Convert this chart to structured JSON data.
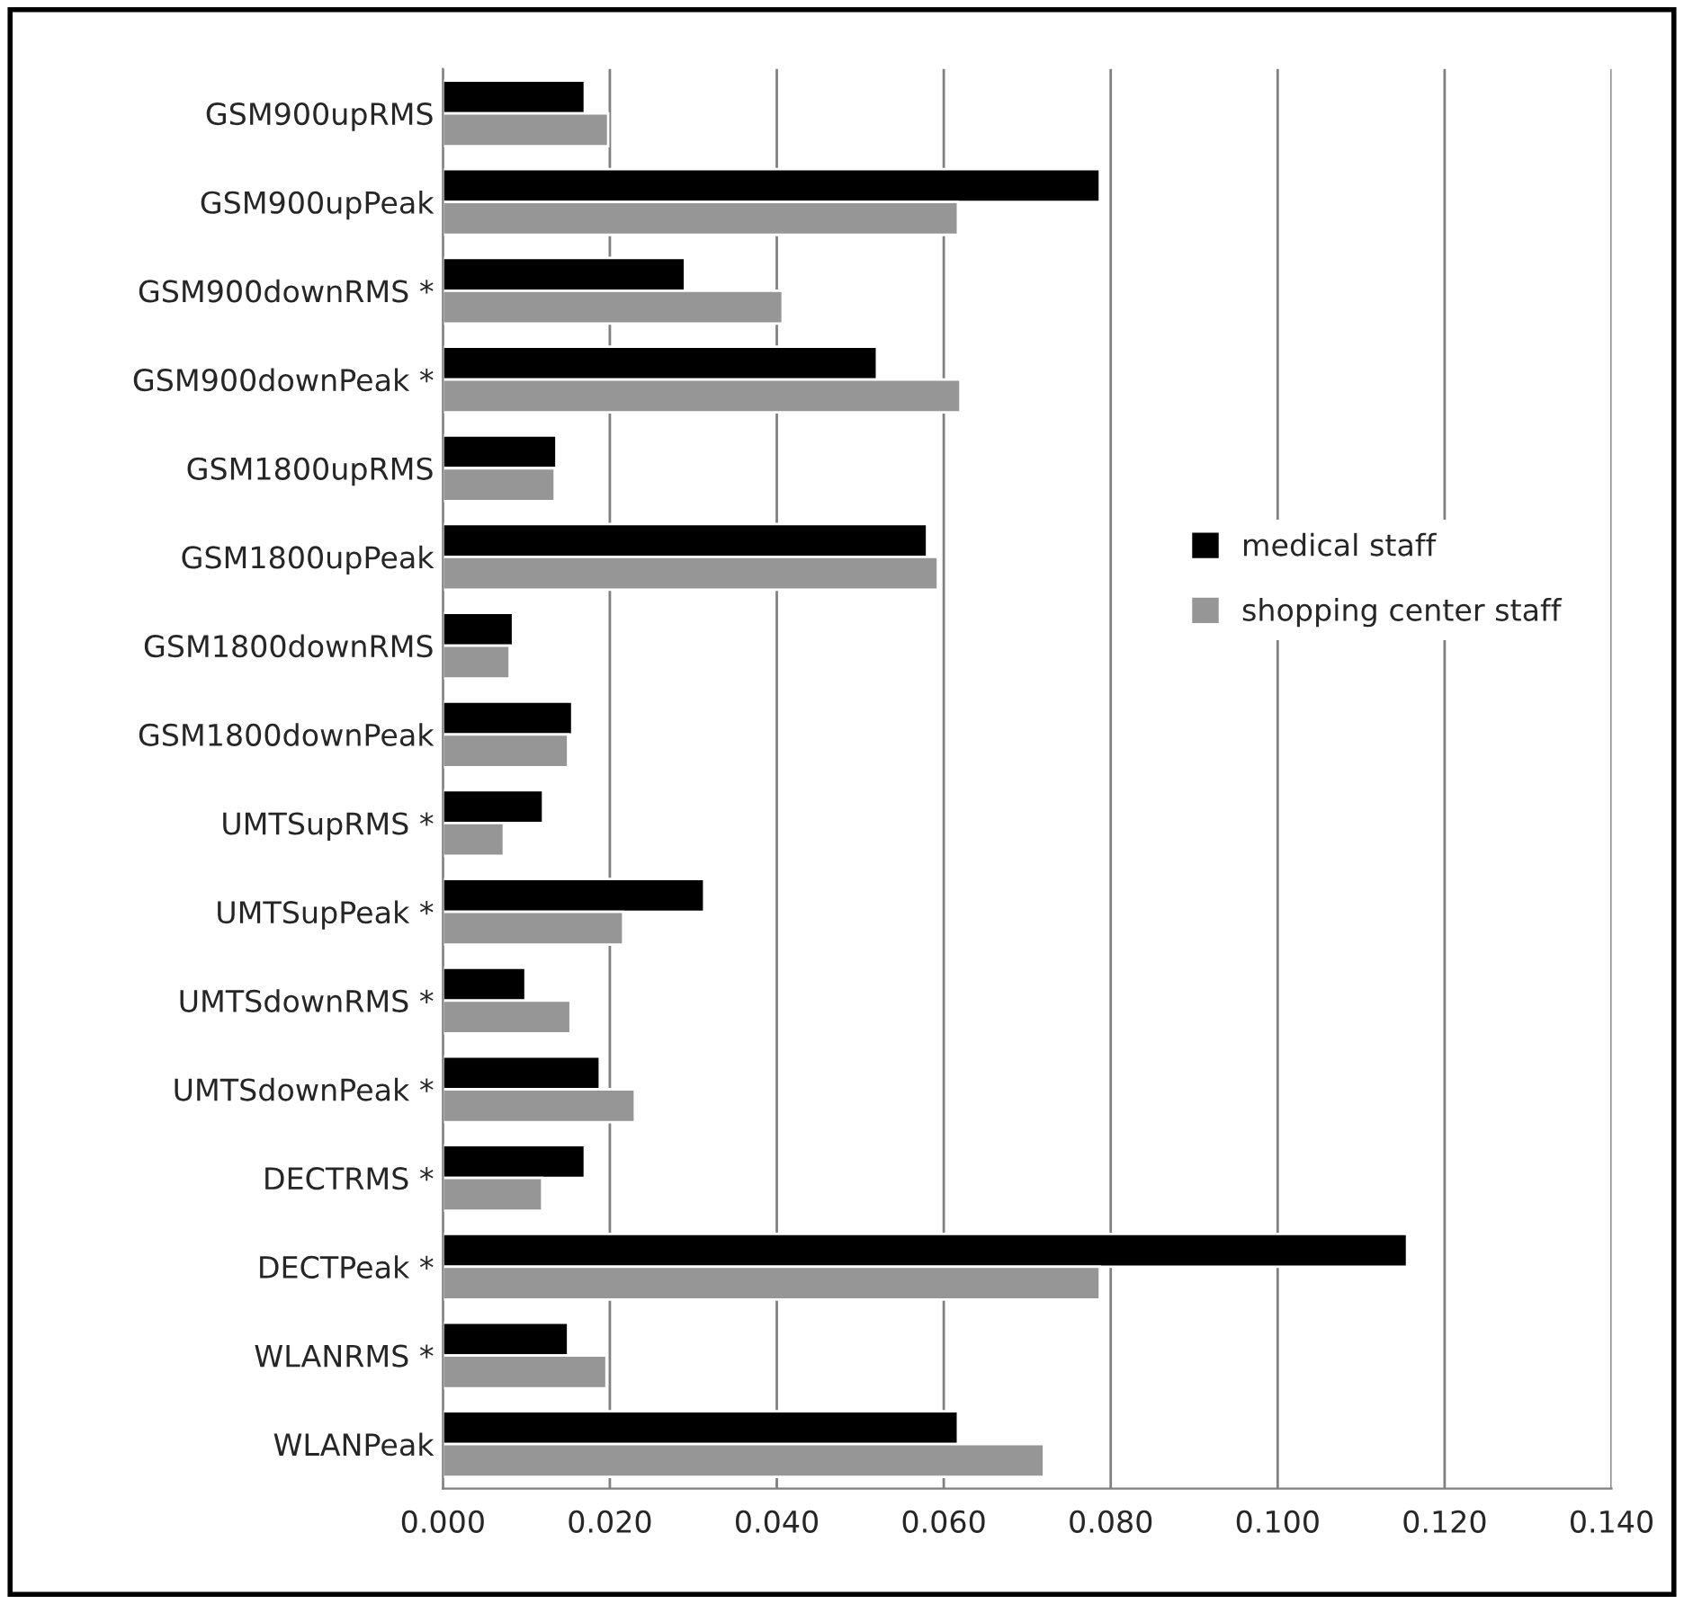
{
  "chart_data": {
    "type": "bar",
    "orientation": "horizontal",
    "categories": [
      "GSM900upRMS",
      "GSM900upPeak",
      "GSM900downRMS *",
      "GSM900downPeak *",
      "GSM1800upRMS",
      "GSM1800upPeak",
      "GSM1800downRMS",
      "GSM1800downPeak",
      "UMTSupRMS *",
      "UMTSupPeak *",
      "UMTSdownRMS *",
      "UMTSdownPeak *",
      "DECTRMS *",
      "DECTPeak *",
      "WLANRMS *",
      "WLANPeak"
    ],
    "series": [
      {
        "name": "medical staff",
        "color": "#000000",
        "values": [
          0.017,
          0.0787,
          0.029,
          0.052,
          0.0136,
          0.058,
          0.0084,
          0.0155,
          0.012,
          0.0313,
          0.0099,
          0.0188,
          0.017,
          0.1155,
          0.015,
          0.0617
        ]
      },
      {
        "name": "shopping center staff",
        "color": "#969696",
        "values": [
          0.0198,
          0.0617,
          0.0407,
          0.062,
          0.0134,
          0.0593,
          0.008,
          0.015,
          0.0073,
          0.0216,
          0.0153,
          0.023,
          0.0119,
          0.0787,
          0.0196,
          0.072
        ]
      }
    ],
    "xlim": [
      0,
      0.14
    ],
    "xticks": [
      {
        "value": 0,
        "label": "0.000"
      },
      {
        "value": 0.02,
        "label": "0.020"
      },
      {
        "value": 0.04,
        "label": "0.040"
      },
      {
        "value": 0.06,
        "label": "0.060"
      },
      {
        "value": 0.08,
        "label": "0.080"
      },
      {
        "value": 0.1,
        "label": "0.100"
      },
      {
        "value": 0.12,
        "label": "0.120"
      },
      {
        "value": 0.14,
        "label": "0.140"
      }
    ],
    "grid": "x",
    "legend": "right"
  }
}
